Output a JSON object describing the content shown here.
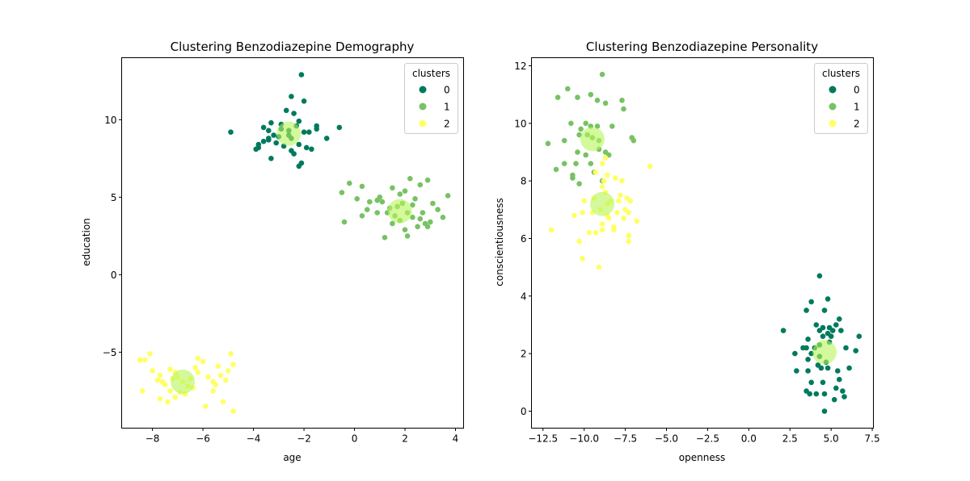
{
  "chart_data": [
    {
      "type": "scatter",
      "title": "Clustering Benzodiazepine Demography",
      "xlabel": "age",
      "ylabel": "education",
      "xlim": [
        -9.22,
        4.32
      ],
      "ylim": [
        -9.9,
        14.0
      ],
      "xticks": [
        -8,
        -6,
        -4,
        -2,
        0,
        2,
        4
      ],
      "xtick_labels": [
        "−8",
        "−6",
        "−4",
        "−2",
        "0",
        "2",
        "4"
      ],
      "yticks": [
        -5,
        0,
        5,
        10
      ],
      "ytick_labels": [
        "−5",
        "0",
        "5",
        "10"
      ],
      "grid": false,
      "legend": {
        "title": "clusters",
        "placement": "top-right",
        "entries": [
          "0",
          "1",
          "2"
        ]
      },
      "series": [
        {
          "name": "0",
          "color": "#007a5e",
          "points": [
            [
              -2.1,
              12.9
            ],
            [
              -2.5,
              11.5
            ],
            [
              -2.0,
              11.2
            ],
            [
              -2.7,
              10.6
            ],
            [
              -2.4,
              10.4
            ],
            [
              -3.3,
              9.8
            ],
            [
              -2.2,
              9.9
            ],
            [
              -1.5,
              9.6
            ],
            [
              -1.5,
              9.4
            ],
            [
              -3.6,
              9.5
            ],
            [
              -3.4,
              9.3
            ],
            [
              -2.9,
              9.4
            ],
            [
              -2.6,
              9.3
            ],
            [
              -2.3,
              9.6
            ],
            [
              -2.0,
              9.2
            ],
            [
              -1.8,
              9.2
            ],
            [
              -4.9,
              9.2
            ],
            [
              -3.2,
              9.0
            ],
            [
              -3.0,
              8.9
            ],
            [
              -2.5,
              8.8
            ],
            [
              -3.4,
              8.7
            ],
            [
              -3.6,
              8.6
            ],
            [
              -3.8,
              8.4
            ],
            [
              -3.9,
              8.1
            ],
            [
              -2.8,
              8.3
            ],
            [
              -2.2,
              8.4
            ],
            [
              -1.9,
              8.2
            ],
            [
              -1.7,
              8.1
            ],
            [
              -3.1,
              8.5
            ],
            [
              -3.3,
              7.5
            ],
            [
              -2.4,
              7.8
            ],
            [
              -2.1,
              7.2
            ],
            [
              -2.2,
              7.0
            ],
            [
              -3.4,
              8.8
            ],
            [
              -1.1,
              8.8
            ],
            [
              -0.6,
              9.5
            ],
            [
              -2.6,
              9.0
            ],
            [
              -2.9,
              9.7
            ],
            [
              -3.8,
              8.2
            ],
            [
              -2.5,
              8.0
            ]
          ]
        },
        {
          "name": "1",
          "color": "#78c264",
          "points": [
            [
              -0.5,
              5.3
            ],
            [
              -0.4,
              3.4
            ],
            [
              0.3,
              5.7
            ],
            [
              0.6,
              4.7
            ],
            [
              0.9,
              4.8
            ],
            [
              1.1,
              4.7
            ],
            [
              1.3,
              4.0
            ],
            [
              0.3,
              3.8
            ],
            [
              0.5,
              4.2
            ],
            [
              1.0,
              5.0
            ],
            [
              1.5,
              5.6
            ],
            [
              2.0,
              5.4
            ],
            [
              2.2,
              6.2
            ],
            [
              2.6,
              5.8
            ],
            [
              2.9,
              6.1
            ],
            [
              1.8,
              5.2
            ],
            [
              1.7,
              4.4
            ],
            [
              2.1,
              4.0
            ],
            [
              2.3,
              3.7
            ],
            [
              1.8,
              3.5
            ],
            [
              1.5,
              3.3
            ],
            [
              2.5,
              3.1
            ],
            [
              2.9,
              3.1
            ],
            [
              3.0,
              3.4
            ],
            [
              3.3,
              4.2
            ],
            [
              3.5,
              3.7
            ],
            [
              3.7,
              5.1
            ],
            [
              1.2,
              2.4
            ],
            [
              2.1,
              2.5
            ],
            [
              2.8,
              3.3
            ],
            [
              0.9,
              4.0
            ],
            [
              2.4,
              4.9
            ],
            [
              1.9,
              4.6
            ],
            [
              2.7,
              4.0
            ],
            [
              1.6,
              3.8
            ],
            [
              3.1,
              4.6
            ],
            [
              2.0,
              2.9
            ],
            [
              1.4,
              4.3
            ],
            [
              2.6,
              3.6
            ],
            [
              2.3,
              4.5
            ],
            [
              -0.2,
              5.9
            ],
            [
              0.1,
              4.9
            ]
          ]
        },
        {
          "name": "2",
          "color": "#ffff66",
          "points": [
            [
              -8.5,
              -5.5
            ],
            [
              -8.3,
              -5.5
            ],
            [
              -8.1,
              -5.1
            ],
            [
              -8.4,
              -7.5
            ],
            [
              -8.0,
              -6.2
            ],
            [
              -7.7,
              -6.5
            ],
            [
              -7.6,
              -6.9
            ],
            [
              -7.3,
              -6.1
            ],
            [
              -7.1,
              -6.3
            ],
            [
              -7.5,
              -7.1
            ],
            [
              -7.3,
              -7.5
            ],
            [
              -7.7,
              -8.0
            ],
            [
              -7.4,
              -8.2
            ],
            [
              -7.1,
              -7.9
            ],
            [
              -6.9,
              -7.6
            ],
            [
              -7.0,
              -6.6
            ],
            [
              -6.8,
              -6.9
            ],
            [
              -6.5,
              -6.7
            ],
            [
              -6.2,
              -5.4
            ],
            [
              -6.0,
              -5.6
            ],
            [
              -6.2,
              -6.3
            ],
            [
              -5.8,
              -6.6
            ],
            [
              -5.6,
              -6.9
            ],
            [
              -5.4,
              -5.9
            ],
            [
              -5.3,
              -6.5
            ],
            [
              -5.0,
              -6.2
            ],
            [
              -4.9,
              -5.1
            ],
            [
              -4.8,
              -5.8
            ],
            [
              -5.1,
              -6.8
            ],
            [
              -5.6,
              -7.5
            ],
            [
              -5.9,
              -8.5
            ],
            [
              -5.2,
              -8.2
            ],
            [
              -4.8,
              -8.8
            ],
            [
              -6.4,
              -7.3
            ],
            [
              -6.7,
              -7.7
            ],
            [
              -7.2,
              -6.7
            ],
            [
              -6.3,
              -6.0
            ],
            [
              -7.8,
              -6.8
            ],
            [
              -6.6,
              -7.2
            ],
            [
              -5.5,
              -7.1
            ]
          ]
        }
      ],
      "centroids": [
        {
          "cluster": "0",
          "x": -2.6,
          "y": 9.1
        },
        {
          "cluster": "1",
          "x": 1.8,
          "y": 4.1
        },
        {
          "cluster": "2",
          "x": -6.8,
          "y": -6.9
        }
      ]
    },
    {
      "type": "scatter",
      "title": "Clustering Benzodiazepine Personality",
      "xlabel": "openness",
      "ylabel": "conscientiousness",
      "xlim": [
        -13.2,
        7.57
      ],
      "ylim": [
        -0.59,
        12.28
      ],
      "xticks": [
        -12.5,
        -10.0,
        -7.5,
        -5.0,
        -2.5,
        0.0,
        2.5,
        5.0,
        7.5
      ],
      "xtick_labels": [
        "−12.5",
        "−10.0",
        "−7.5",
        "−5.0",
        "−2.5",
        "0.0",
        "2.5",
        "5.0",
        "7.5"
      ],
      "yticks": [
        0,
        2,
        4,
        6,
        8,
        10,
        12
      ],
      "ytick_labels": [
        "0",
        "2",
        "4",
        "6",
        "8",
        "10",
        "12"
      ],
      "grid": false,
      "legend": {
        "title": "clusters",
        "placement": "top-right",
        "entries": [
          "0",
          "1",
          "2"
        ]
      },
      "series": [
        {
          "name": "0",
          "color": "#007a5e",
          "points": [
            [
              4.3,
              4.7
            ],
            [
              3.8,
              3.8
            ],
            [
              4.8,
              3.9
            ],
            [
              3.5,
              3.5
            ],
            [
              4.6,
              3.5
            ],
            [
              4.1,
              3.0
            ],
            [
              4.5,
              2.9
            ],
            [
              4.9,
              2.9
            ],
            [
              5.1,
              2.8
            ],
            [
              4.3,
              2.8
            ],
            [
              5.3,
              3.0
            ],
            [
              5.6,
              2.8
            ],
            [
              5.0,
              2.6
            ],
            [
              4.8,
              2.7
            ],
            [
              2.1,
              2.8
            ],
            [
              6.7,
              2.6
            ],
            [
              3.6,
              2.5
            ],
            [
              3.5,
              2.2
            ],
            [
              3.3,
              2.2
            ],
            [
              2.8,
              2.0
            ],
            [
              3.8,
              2.0
            ],
            [
              4.0,
              2.2
            ],
            [
              4.3,
              2.3
            ],
            [
              4.9,
              2.4
            ],
            [
              5.9,
              2.2
            ],
            [
              6.5,
              2.1
            ],
            [
              2.9,
              1.4
            ],
            [
              3.6,
              1.4
            ],
            [
              4.2,
              1.6
            ],
            [
              4.4,
              1.5
            ],
            [
              4.8,
              1.5
            ],
            [
              5.4,
              1.4
            ],
            [
              6.1,
              1.5
            ],
            [
              3.8,
              1.0
            ],
            [
              4.5,
              1.0
            ],
            [
              5.5,
              1.1
            ],
            [
              3.5,
              0.7
            ],
            [
              3.7,
              0.6
            ],
            [
              4.1,
              0.6
            ],
            [
              4.6,
              0.6
            ],
            [
              5.3,
              0.8
            ],
            [
              5.7,
              0.7
            ],
            [
              5.8,
              0.5
            ],
            [
              5.2,
              0.4
            ],
            [
              4.6,
              0.0
            ],
            [
              3.6,
              1.8
            ],
            [
              4.3,
              1.9
            ],
            [
              4.7,
              1.7
            ],
            [
              4.5,
              2.6
            ],
            [
              5.5,
              3.2
            ]
          ]
        },
        {
          "name": "1",
          "color": "#78c264",
          "points": [
            [
              -8.9,
              11.7
            ],
            [
              -11.0,
              11.2
            ],
            [
              -11.6,
              10.9
            ],
            [
              -10.4,
              10.9
            ],
            [
              -9.6,
              11.0
            ],
            [
              -9.2,
              10.8
            ],
            [
              -8.7,
              10.7
            ],
            [
              -7.7,
              10.8
            ],
            [
              -7.6,
              10.5
            ],
            [
              -10.8,
              10.0
            ],
            [
              -9.9,
              10.0
            ],
            [
              -9.6,
              9.9
            ],
            [
              -8.3,
              9.9
            ],
            [
              -10.3,
              9.6
            ],
            [
              -9.5,
              9.5
            ],
            [
              -9.1,
              9.4
            ],
            [
              -7.1,
              9.5
            ],
            [
              -7.0,
              9.4
            ],
            [
              -11.2,
              9.4
            ],
            [
              -12.2,
              9.3
            ],
            [
              -10.4,
              9.0
            ],
            [
              -9.9,
              8.9
            ],
            [
              -9.1,
              9.1
            ],
            [
              -8.7,
              9.0
            ],
            [
              -8.5,
              8.9
            ],
            [
              -11.2,
              8.6
            ],
            [
              -11.7,
              8.4
            ],
            [
              -10.7,
              8.1
            ],
            [
              -10.3,
              7.9
            ],
            [
              -10.5,
              8.6
            ],
            [
              -9.4,
              8.3
            ],
            [
              -9.6,
              8.6
            ],
            [
              -8.9,
              8.0
            ],
            [
              -10.7,
              8.2
            ],
            [
              -9.8,
              9.6
            ],
            [
              -9.2,
              9.9
            ],
            [
              -10.2,
              9.8
            ]
          ]
        },
        {
          "name": "2",
          "color": "#ffff66",
          "points": [
            [
              -8.7,
              8.8
            ],
            [
              -8.9,
              8.6
            ],
            [
              -9.3,
              8.3
            ],
            [
              -8.8,
              8.0
            ],
            [
              -8.9,
              7.8
            ],
            [
              -8.7,
              7.6
            ],
            [
              -8.1,
              8.1
            ],
            [
              -7.7,
              8.0
            ],
            [
              -7.8,
              7.5
            ],
            [
              -6.0,
              8.5
            ],
            [
              -10.0,
              7.3
            ],
            [
              -9.4,
              7.4
            ],
            [
              -10.6,
              6.8
            ],
            [
              -10.1,
              6.9
            ],
            [
              -9.5,
              6.9
            ],
            [
              -8.6,
              7.2
            ],
            [
              -8.4,
              7.3
            ],
            [
              -7.9,
              7.3
            ],
            [
              -7.4,
              7.4
            ],
            [
              -7.2,
              7.3
            ],
            [
              -7.5,
              7.0
            ],
            [
              -7.3,
              6.9
            ],
            [
              -8.6,
              6.8
            ],
            [
              -8.5,
              6.7
            ],
            [
              -8.9,
              6.5
            ],
            [
              -8.9,
              6.3
            ],
            [
              -9.3,
              6.2
            ],
            [
              -9.7,
              6.2
            ],
            [
              -8.2,
              6.3
            ],
            [
              -8.2,
              6.4
            ],
            [
              -7.6,
              6.7
            ],
            [
              -6.8,
              6.6
            ],
            [
              -7.3,
              6.1
            ],
            [
              -7.3,
              5.9
            ],
            [
              -12.0,
              6.3
            ],
            [
              -10.3,
              5.9
            ],
            [
              -10.1,
              5.3
            ],
            [
              -9.1,
              5.0
            ],
            [
              -8.6,
              8.2
            ],
            [
              -9.0,
              7.0
            ],
            [
              -8.0,
              6.9
            ]
          ]
        }
      ],
      "centroids": [
        {
          "cluster": "0",
          "x": 4.6,
          "y": 2.05
        },
        {
          "cluster": "1",
          "x": -9.5,
          "y": 9.45
        },
        {
          "cluster": "2",
          "x": -8.9,
          "y": 7.2
        }
      ]
    }
  ]
}
